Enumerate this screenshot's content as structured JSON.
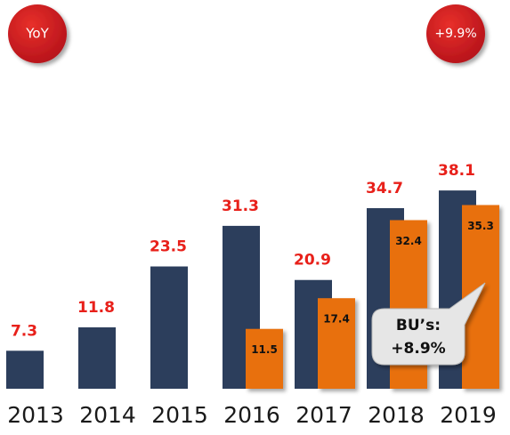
{
  "chart_data": {
    "type": "bar",
    "categories": [
      "2013",
      "2014",
      "2015",
      "2016",
      "2017",
      "2018",
      "2019"
    ],
    "series": [
      {
        "color": "#2c3e5c",
        "values": [
          7.3,
          11.8,
          23.5,
          31.3,
          20.9,
          34.7,
          38.1
        ]
      },
      {
        "color": "#e8700e",
        "values": [
          null,
          null,
          null,
          11.5,
          17.4,
          32.4,
          35.3
        ]
      }
    ],
    "badges": [
      "YoY",
      "+9.9%"
    ],
    "callout": [
      "BU’s:",
      "+8.9%"
    ]
  }
}
